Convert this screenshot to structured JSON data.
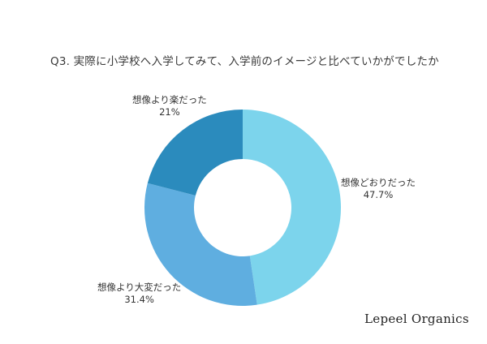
{
  "chart_data": {
    "type": "pie",
    "subtype": "donut",
    "title": "Q3. 実際に小学校へ入学してみて、入学前のイメージと比べていかがでしたか",
    "categories": [
      "想像どおりだった",
      "想像より大変だった",
      "想像より楽だった"
    ],
    "values": [
      47.7,
      31.4,
      21
    ],
    "value_labels": [
      "47.7%",
      "31.4%",
      "21%"
    ],
    "colors": [
      "#7cd4ec",
      "#5faee0",
      "#2b8bbd"
    ],
    "start_angle": "12 o'clock",
    "direction": "clockwise",
    "legend": "none (labels beside slices)"
  },
  "labels": [
    {
      "name": "想像どおりだった",
      "pct": "47.7%"
    },
    {
      "name": "想像より大変だった",
      "pct": "31.4%"
    },
    {
      "name": "想像より楽だった",
      "pct": "21%"
    }
  ],
  "brand": "Lepeel Organics"
}
